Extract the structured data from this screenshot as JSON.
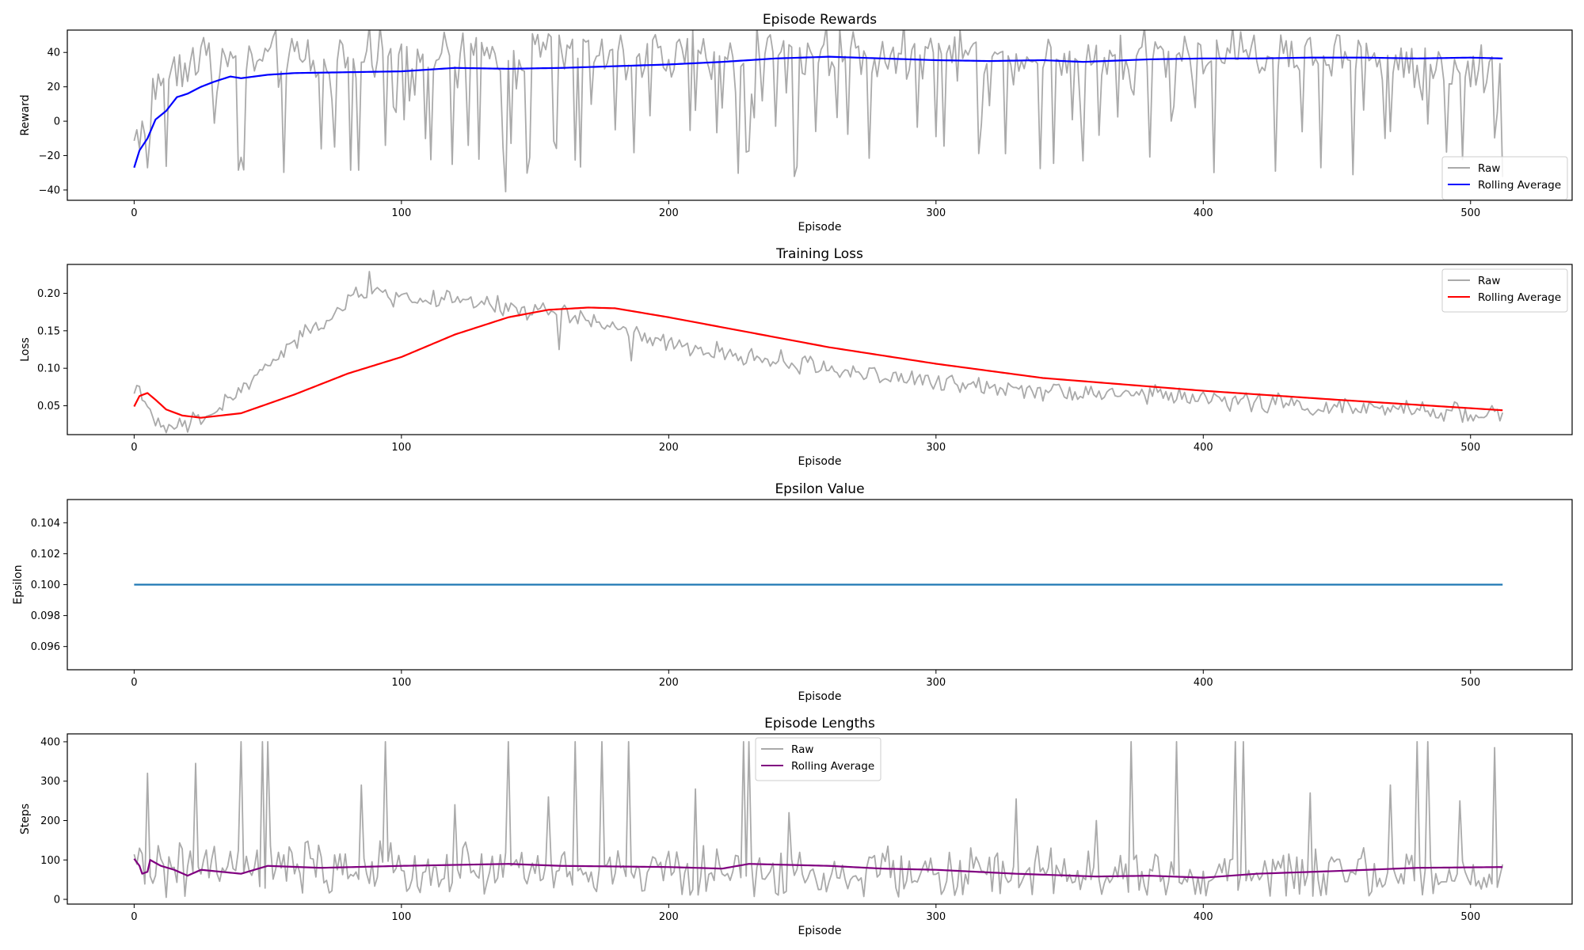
{
  "chart_data": [
    {
      "type": "line",
      "title": "Episode Rewards",
      "xlabel": "Episode",
      "ylabel": "Reward",
      "xlim": [
        -25,
        538
      ],
      "ylim": [
        -46,
        53
      ],
      "xticks": [
        0,
        100,
        200,
        300,
        400,
        500
      ],
      "yticks": [
        -40,
        -20,
        0,
        20,
        40
      ],
      "legend_loc": "lower-right",
      "x_count": 513,
      "series": [
        {
          "name": "Raw",
          "color": "#aaaaaa",
          "style": "noisy",
          "keypoints": [
            [
              0,
              -10
            ],
            [
              3,
              -3
            ],
            [
              6,
              10
            ],
            [
              10,
              25
            ],
            [
              20,
              38
            ],
            [
              40,
              35
            ],
            [
              80,
              38
            ],
            [
              120,
              39
            ],
            [
              160,
              40
            ],
            [
              200,
              40
            ],
            [
              260,
              40
            ],
            [
              300,
              40
            ],
            [
              350,
              38
            ],
            [
              400,
              40
            ],
            [
              450,
              38
            ],
            [
              512,
              28
            ]
          ],
          "noise": 9,
          "dips": 0.22,
          "dip_min": -40,
          "spikes": [
            [
              139,
              -41
            ],
            [
              40,
              -21
            ],
            [
              355,
              -23
            ],
            [
              300,
              -9
            ],
            [
              255,
              -6
            ],
            [
              75,
              -15
            ],
            [
              180,
              -5
            ],
            [
              470,
              -6
            ],
            [
              510,
              5
            ]
          ]
        },
        {
          "name": "Rolling Average",
          "color": "#0000ff",
          "style": "smooth",
          "keypoints": [
            [
              0,
              -27
            ],
            [
              2,
              -17
            ],
            [
              5,
              -10
            ],
            [
              8,
              1
            ],
            [
              12,
              6
            ],
            [
              16,
              14
            ],
            [
              20,
              16
            ],
            [
              25,
              20
            ],
            [
              30,
              23
            ],
            [
              36,
              26
            ],
            [
              40,
              25
            ],
            [
              50,
              27
            ],
            [
              60,
              28
            ],
            [
              80,
              28.5
            ],
            [
              100,
              29
            ],
            [
              120,
              31
            ],
            [
              140,
              30.5
            ],
            [
              160,
              31
            ],
            [
              180,
              32
            ],
            [
              200,
              33
            ],
            [
              220,
              34.5
            ],
            [
              240,
              36.5
            ],
            [
              260,
              37.5
            ],
            [
              280,
              36.5
            ],
            [
              300,
              35.5
            ],
            [
              320,
              35
            ],
            [
              340,
              35.5
            ],
            [
              355,
              34.5
            ],
            [
              380,
              36
            ],
            [
              400,
              36.5
            ],
            [
              420,
              36.5
            ],
            [
              440,
              37
            ],
            [
              460,
              37
            ],
            [
              480,
              36.5
            ],
            [
              500,
              37
            ],
            [
              512,
              36.5
            ]
          ]
        }
      ]
    },
    {
      "type": "line",
      "title": "Training Loss",
      "xlabel": "Episode",
      "ylabel": "Loss",
      "xlim": [
        -25,
        538
      ],
      "ylim": [
        0.0115,
        0.2385
      ],
      "xticks": [
        0,
        100,
        200,
        300,
        400,
        500
      ],
      "yticks": [
        0.05,
        0.1,
        0.15,
        0.2
      ],
      "legend_loc": "upper-right",
      "x_count": 513,
      "series": [
        {
          "name": "Raw",
          "color": "#aaaaaa",
          "style": "noisy",
          "keypoints": [
            [
              0,
              0.07
            ],
            [
              3,
              0.072
            ],
            [
              5,
              0.05
            ],
            [
              7,
              0.022
            ],
            [
              15,
              0.02
            ],
            [
              25,
              0.03
            ],
            [
              40,
              0.07
            ],
            [
              55,
              0.12
            ],
            [
              70,
              0.16
            ],
            [
              85,
              0.2
            ],
            [
              100,
              0.195
            ],
            [
              120,
              0.19
            ],
            [
              140,
              0.18
            ],
            [
              160,
              0.175
            ],
            [
              180,
              0.155
            ],
            [
              200,
              0.13
            ],
            [
              230,
              0.115
            ],
            [
              260,
              0.1
            ],
            [
              300,
              0.08
            ],
            [
              350,
              0.07
            ],
            [
              400,
              0.06
            ],
            [
              450,
              0.047
            ],
            [
              512,
              0.04
            ]
          ],
          "noise": 0.008,
          "dips": 0,
          "dip_min": 0.02,
          "spikes": [
            [
              88,
              0.229
            ],
            [
              159,
              0.125
            ],
            [
              186,
              0.11
            ],
            [
              1,
              0.077
            ]
          ]
        },
        {
          "name": "Rolling Average",
          "color": "#ff0000",
          "style": "smooth",
          "keypoints": [
            [
              0,
              0.049
            ],
            [
              2,
              0.063
            ],
            [
              5,
              0.067
            ],
            [
              8,
              0.058
            ],
            [
              12,
              0.045
            ],
            [
              18,
              0.037
            ],
            [
              25,
              0.034
            ],
            [
              40,
              0.04
            ],
            [
              60,
              0.065
            ],
            [
              80,
              0.093
            ],
            [
              100,
              0.115
            ],
            [
              120,
              0.145
            ],
            [
              140,
              0.168
            ],
            [
              155,
              0.178
            ],
            [
              170,
              0.181
            ],
            [
              180,
              0.18
            ],
            [
              200,
              0.168
            ],
            [
              230,
              0.148
            ],
            [
              260,
              0.128
            ],
            [
              300,
              0.106
            ],
            [
              340,
              0.087
            ],
            [
              400,
              0.07
            ],
            [
              450,
              0.058
            ],
            [
              512,
              0.044
            ]
          ]
        }
      ]
    },
    {
      "type": "line",
      "title": "Epsilon Value",
      "xlabel": "Episode",
      "ylabel": "Epsilon",
      "xlim": [
        -25,
        538
      ],
      "ylim": [
        0.0945,
        0.1055
      ],
      "xticks": [
        0,
        100,
        200,
        300,
        400,
        500
      ],
      "yticks": [
        "0.096",
        "0.098",
        "0.100",
        "0.102",
        "0.104"
      ],
      "legend_loc": "",
      "x_count": 513,
      "series": [
        {
          "name": "",
          "color": "#1f77b4",
          "style": "smooth",
          "keypoints": [
            [
              0,
              0.1
            ],
            [
              512,
              0.1
            ]
          ]
        }
      ]
    },
    {
      "type": "line",
      "title": "Episode Lengths",
      "xlabel": "Episode",
      "ylabel": "Steps",
      "xlim": [
        -25,
        538
      ],
      "ylim": [
        -12,
        420
      ],
      "xticks": [
        0,
        100,
        200,
        300,
        400,
        500
      ],
      "yticks": [
        0,
        100,
        200,
        300,
        400
      ],
      "legend_loc": "upper-center",
      "x_count": 513,
      "series": [
        {
          "name": "Raw",
          "color": "#aaaaaa",
          "style": "noisy",
          "keypoints": [
            [
              0,
              80
            ],
            [
              100,
              75
            ],
            [
              200,
              70
            ],
            [
              300,
              65
            ],
            [
              400,
              55
            ],
            [
              512,
              60
            ]
          ],
          "noise": 40,
          "dips": 0,
          "dip_min": 5,
          "floor": 5,
          "spikes": [
            [
              5,
              320
            ],
            [
              23,
              345
            ],
            [
              40,
              400
            ],
            [
              48,
              400
            ],
            [
              50,
              400
            ],
            [
              94,
              400
            ],
            [
              140,
              400
            ],
            [
              165,
              400
            ],
            [
              175,
              400
            ],
            [
              185,
              400
            ],
            [
              228,
              400
            ],
            [
              230,
              400
            ],
            [
              373,
              400
            ],
            [
              390,
              400
            ],
            [
              412,
              400
            ],
            [
              415,
              400
            ],
            [
              480,
              400
            ],
            [
              484,
              400
            ],
            [
              509,
              385
            ],
            [
              85,
              290
            ],
            [
              120,
              240
            ],
            [
              155,
              260
            ],
            [
              210,
              280
            ],
            [
              245,
              220
            ],
            [
              330,
              255
            ],
            [
              360,
              200
            ],
            [
              440,
              270
            ],
            [
              470,
              290
            ],
            [
              496,
              250
            ]
          ]
        },
        {
          "name": "Rolling Average",
          "color": "#800080",
          "style": "smooth",
          "keypoints": [
            [
              0,
              103
            ],
            [
              2,
              85
            ],
            [
              3,
              65
            ],
            [
              5,
              70
            ],
            [
              6,
              100
            ],
            [
              10,
              85
            ],
            [
              15,
              75
            ],
            [
              20,
              60
            ],
            [
              25,
              75
            ],
            [
              40,
              65
            ],
            [
              50,
              85
            ],
            [
              70,
              80
            ],
            [
              100,
              85
            ],
            [
              140,
              90
            ],
            [
              160,
              85
            ],
            [
              200,
              82
            ],
            [
              220,
              78
            ],
            [
              230,
              90
            ],
            [
              260,
              85
            ],
            [
              280,
              78
            ],
            [
              300,
              75
            ],
            [
              330,
              65
            ],
            [
              360,
              58
            ],
            [
              380,
              60
            ],
            [
              400,
              55
            ],
            [
              420,
              65
            ],
            [
              450,
              72
            ],
            [
              480,
              80
            ],
            [
              512,
              82
            ]
          ]
        }
      ]
    }
  ]
}
